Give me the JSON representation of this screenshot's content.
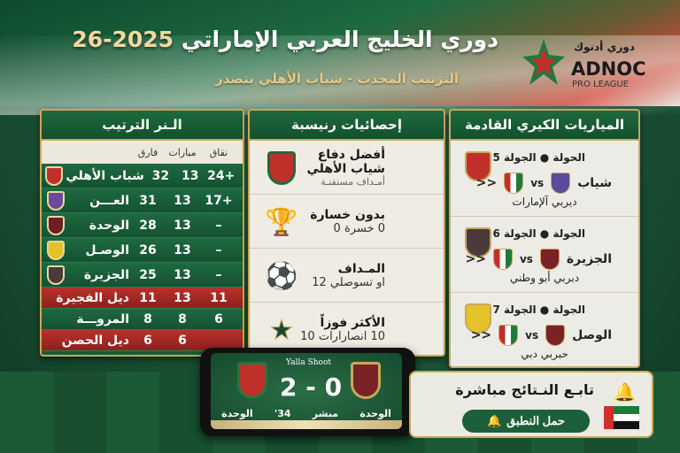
{
  "header": {
    "title": "دوري الخليج العربي الإماراتي",
    "season": "2025-26",
    "subtitle": "الترتيب المحدث - شباب الأهلي يتصدر",
    "logo": {
      "arabic": "دوري أدنوك",
      "brand": "ADNOC",
      "sub": "PRO LEAGUE"
    }
  },
  "standings": {
    "title": "الـنر الترتيب",
    "columns": {
      "diff": "نقاق",
      "played": "مبارات",
      "points": "فارق"
    },
    "rows": [
      {
        "name": "شباب الأهلي",
        "points": "32",
        "played": "13",
        "diff": "+24",
        "crest": "#c0302a",
        "style": "green"
      },
      {
        "name": "العـــن",
        "points": "31",
        "played": "13",
        "diff": "+17",
        "crest": "#6a4a9a",
        "style": "green"
      },
      {
        "name": "الوحدة",
        "points": "28",
        "played": "13",
        "diff": "–",
        "crest": "#6e1f22",
        "style": "green"
      },
      {
        "name": "الوصـل",
        "points": "26",
        "played": "13",
        "diff": "–",
        "crest": "#e3c22a",
        "style": "green"
      },
      {
        "name": "الجزيرة",
        "points": "25",
        "played": "13",
        "diff": "–",
        "crest": "#4a3a3c",
        "style": "green"
      },
      {
        "name": "ديل الفجيرة",
        "points": "11",
        "played": "13",
        "diff": "11",
        "style": "red"
      },
      {
        "name": "المروـــة",
        "points": "8",
        "played": "8",
        "diff": "6",
        "style": "green"
      },
      {
        "name": "ديل الحصن",
        "points": "6",
        "played": "6",
        "diff": "",
        "style": "red"
      }
    ]
  },
  "stats": {
    "title": "إحصائيات رنيسبة",
    "items": [
      {
        "label": "أفضل دفاع",
        "value": "شياب الأهلي",
        "note": "أمـداف مستقنـة",
        "icon": "club-crest-icon"
      },
      {
        "label": "بدون خسارة",
        "value": "0 خسرة 0",
        "icon": "trophy-icon"
      },
      {
        "label": "المـداف",
        "value": "او تسوصلي 12",
        "icon": "football-icon"
      },
      {
        "label": "الأكثر فوزاً",
        "value": "10 انصارارات 10",
        "icon": "star-icon"
      }
    ]
  },
  "matches": {
    "title": "المياريات الكيري القادمة",
    "items": [
      {
        "round": "الحولة ● الجولة 5",
        "home": "شياب",
        "vs": "vs",
        "arrows": "<<",
        "derby": "ديربي آلإمارات"
      },
      {
        "round": "الجولة ● الجولة 6",
        "home": "الجزيرة",
        "vs": "vs",
        "arrows": "<<",
        "derby": "دبربي أبو وطني"
      },
      {
        "round": "الجولة ● الجولة 7",
        "home": "الوصل",
        "vs": "vs",
        "arrows": "<<",
        "derby": "حبربي دبي"
      }
    ]
  },
  "live": {
    "brand": "Yalla Shoot",
    "score": "2 - 0",
    "home": "الوحدة",
    "status": "مبشر",
    "minute": "34'",
    "away": "الوحدة"
  },
  "cta": {
    "title": "تابـع النـتائج مباشرة",
    "button": "حمل النطبق"
  },
  "colors": {
    "green": "#1a5a36",
    "red": "#b8312b",
    "gold": "#c9a85a"
  }
}
